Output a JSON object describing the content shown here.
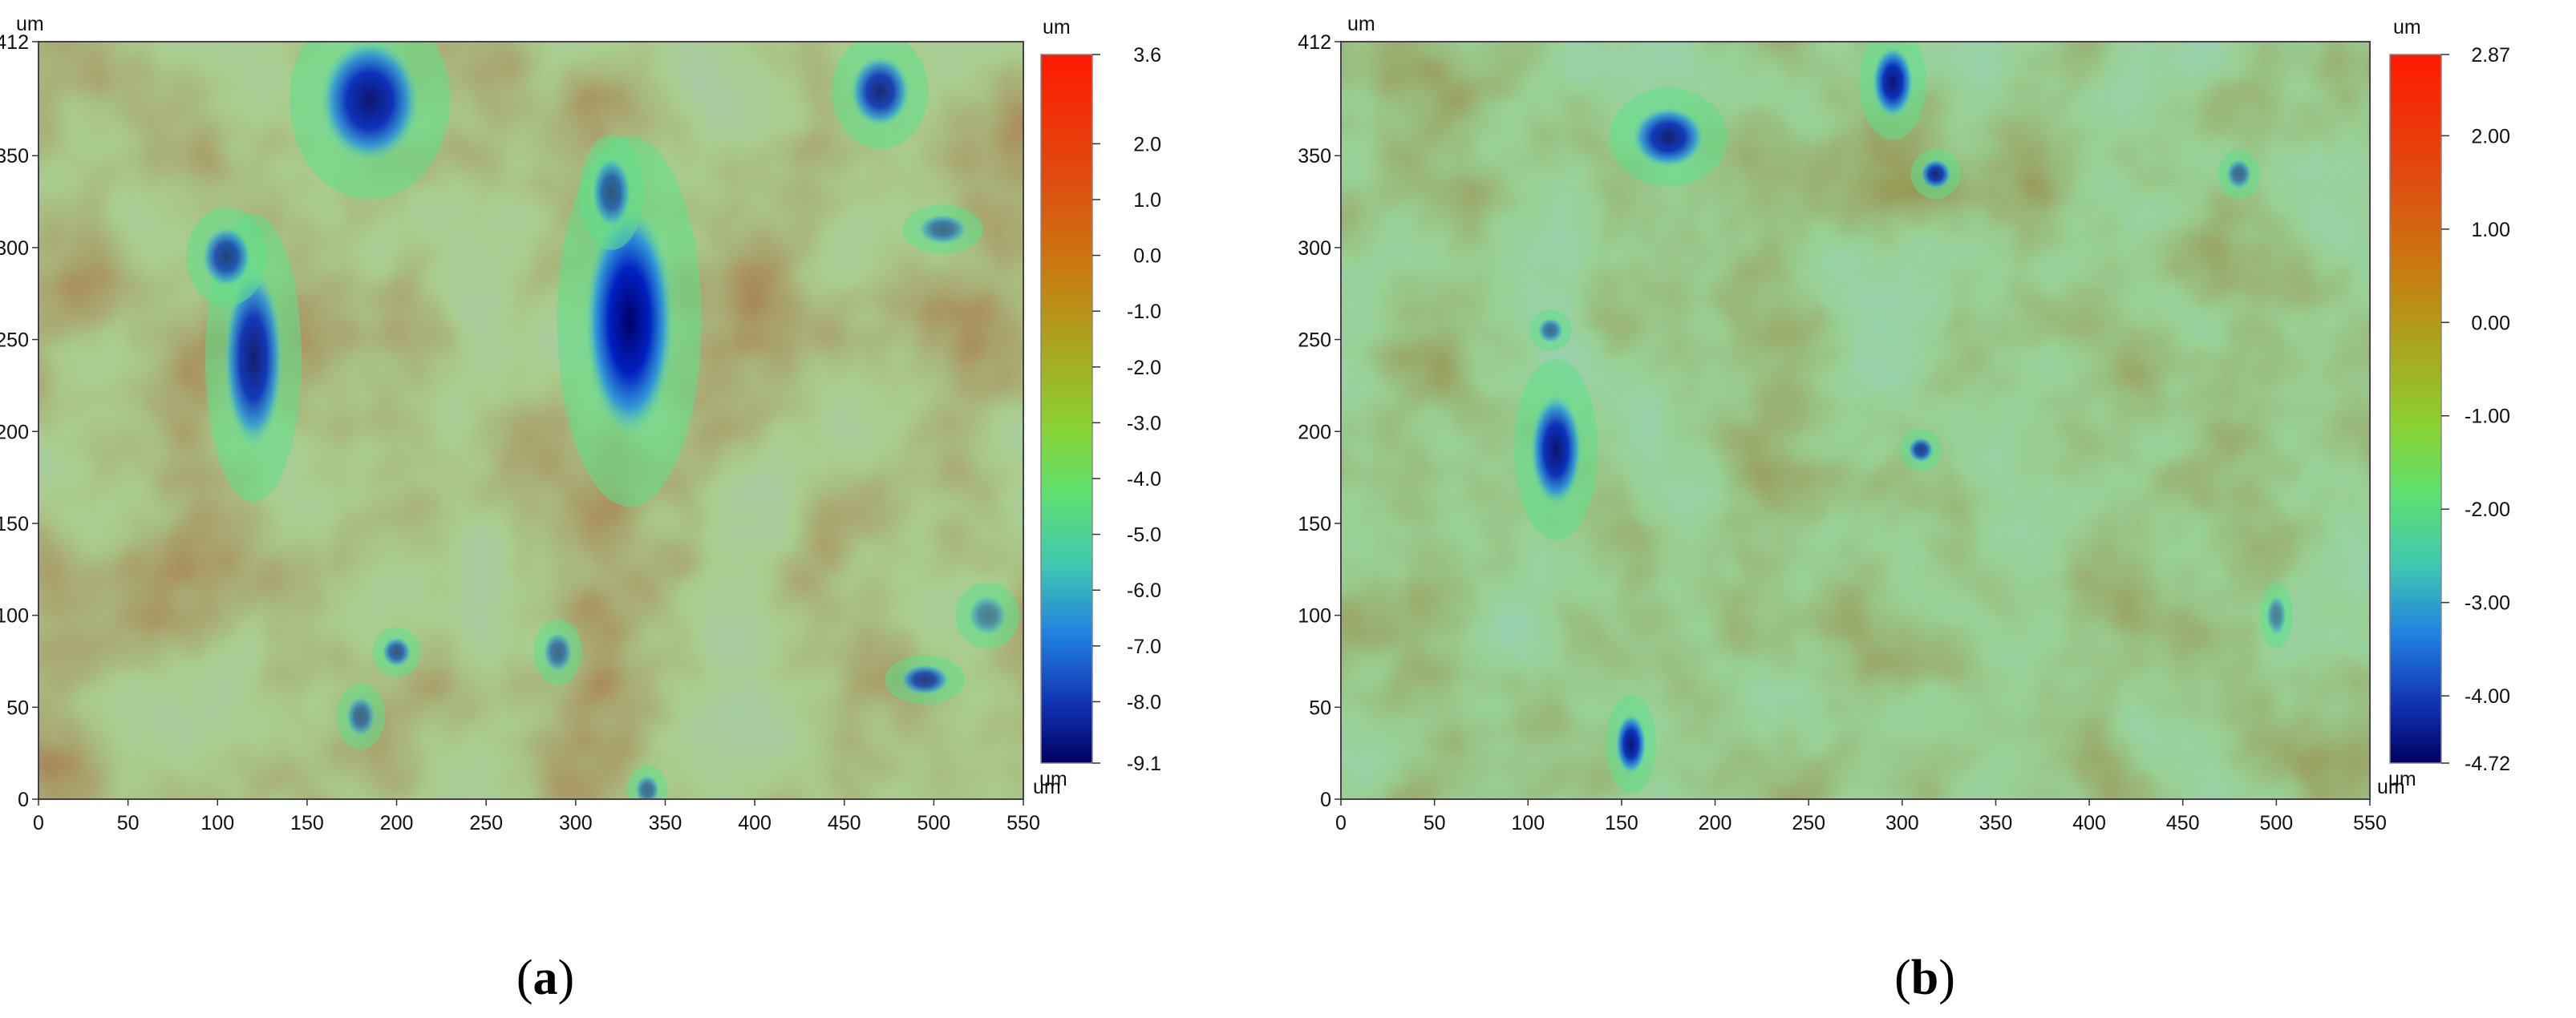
{
  "panels": [
    {
      "label": "(a)",
      "label_letter": "a",
      "x_unit": "um",
      "y_unit": "um",
      "colorbar_unit_top": "um",
      "colorbar_unit_bottom": "um",
      "x_ticks": [
        "0",
        "50",
        "100",
        "150",
        "200",
        "250",
        "300",
        "350",
        "400",
        "450",
        "500",
        "550"
      ],
      "y_ticks": [
        "0",
        "50",
        "100",
        "150",
        "200",
        "250",
        "300",
        "350",
        "412"
      ],
      "colorbar_ticks": [
        "3.6",
        "2.0",
        "1.0",
        "0.0",
        "-1.0",
        "-2.0",
        "-3.0",
        "-4.0",
        "-5.0",
        "-6.0",
        "-7.0",
        "-8.0",
        "-9.1"
      ],
      "colorbar_values": [
        3.6,
        2.0,
        1.0,
        0.0,
        -1.0,
        -2.0,
        -3.0,
        -4.0,
        -5.0,
        -6.0,
        -7.0,
        -8.0,
        -9.1
      ],
      "background_color": "#e0571c",
      "pits": [
        {
          "x": 185,
          "y": 380,
          "rx": 20,
          "ry": 24,
          "depth": 0.9
        },
        {
          "x": 470,
          "y": 385,
          "rx": 12,
          "ry": 14,
          "depth": 0.8
        },
        {
          "x": 330,
          "y": 260,
          "rx": 18,
          "ry": 45,
          "depth": 1.0
        },
        {
          "x": 320,
          "y": 330,
          "rx": 8,
          "ry": 14,
          "depth": 0.6
        },
        {
          "x": 120,
          "y": 240,
          "rx": 12,
          "ry": 35,
          "depth": 0.85
        },
        {
          "x": 105,
          "y": 295,
          "rx": 10,
          "ry": 12,
          "depth": 0.7
        },
        {
          "x": 200,
          "y": 80,
          "rx": 6,
          "ry": 6,
          "depth": 0.6
        },
        {
          "x": 180,
          "y": 45,
          "rx": 6,
          "ry": 8,
          "depth": 0.5
        },
        {
          "x": 495,
          "y": 65,
          "rx": 10,
          "ry": 6,
          "depth": 0.7
        },
        {
          "x": 505,
          "y": 310,
          "rx": 10,
          "ry": 6,
          "depth": 0.5
        },
        {
          "x": 290,
          "y": 80,
          "rx": 6,
          "ry": 8,
          "depth": 0.5
        },
        {
          "x": 340,
          "y": 5,
          "rx": 5,
          "ry": 6,
          "depth": 0.5
        },
        {
          "x": 530,
          "y": 100,
          "rx": 8,
          "ry": 8,
          "depth": 0.4
        }
      ]
    },
    {
      "label": "(b)",
      "label_letter": "b",
      "x_unit": "um",
      "y_unit": "um",
      "colorbar_unit_top": "um",
      "colorbar_unit_bottom": "um",
      "x_ticks": [
        "0",
        "50",
        "100",
        "150",
        "200",
        "250",
        "300",
        "350",
        "400",
        "450",
        "500",
        "550"
      ],
      "y_ticks": [
        "0",
        "50",
        "100",
        "150",
        "200",
        "250",
        "300",
        "350",
        "412"
      ],
      "colorbar_ticks": [
        "2.87",
        "2.00",
        "1.00",
        "0.00",
        "-1.00",
        "-2.00",
        "-3.00",
        "-4.00",
        "-4.72"
      ],
      "colorbar_values": [
        2.87,
        2.0,
        1.0,
        0.0,
        -1.0,
        -2.0,
        -3.0,
        -4.0,
        -4.72
      ],
      "background_color": "#c8a83a",
      "pits": [
        {
          "x": 295,
          "y": 390,
          "rx": 8,
          "ry": 14,
          "depth": 0.9
        },
        {
          "x": 175,
          "y": 360,
          "rx": 14,
          "ry": 12,
          "depth": 0.85
        },
        {
          "x": 318,
          "y": 340,
          "rx": 6,
          "ry": 6,
          "depth": 0.8
        },
        {
          "x": 115,
          "y": 190,
          "rx": 10,
          "ry": 22,
          "depth": 0.9
        },
        {
          "x": 155,
          "y": 30,
          "rx": 6,
          "ry": 12,
          "depth": 0.9
        },
        {
          "x": 310,
          "y": 190,
          "rx": 5,
          "ry": 5,
          "depth": 0.7
        },
        {
          "x": 112,
          "y": 255,
          "rx": 5,
          "ry": 5,
          "depth": 0.5
        },
        {
          "x": 480,
          "y": 340,
          "rx": 5,
          "ry": 6,
          "depth": 0.5
        },
        {
          "x": 500,
          "y": 100,
          "rx": 4,
          "ry": 8,
          "depth": 0.4
        }
      ]
    }
  ]
}
